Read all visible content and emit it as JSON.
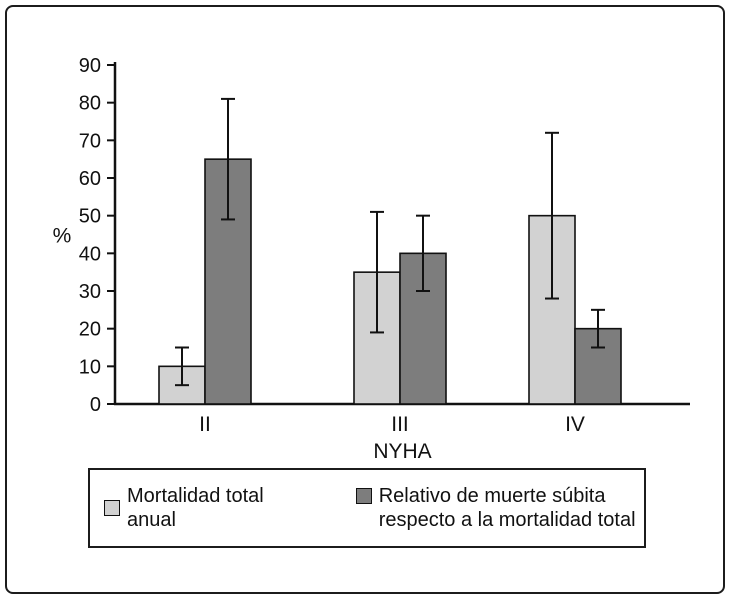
{
  "figure": {
    "type": "scientific-bar-chart"
  },
  "chart_data": {
    "type": "bar",
    "title": "",
    "categories": [
      "II",
      "III",
      "IV"
    ],
    "series": [
      {
        "name": "Mortalidad total anual",
        "color": "#d2d2d2",
        "values": [
          10,
          35,
          50
        ],
        "errors": [
          5,
          16,
          22
        ]
      },
      {
        "name": "Relativo de muerte súbita respecto a la mortalidad total",
        "color": "#7d7d7d",
        "values": [
          65,
          40,
          20
        ],
        "errors": [
          16,
          10,
          5
        ]
      }
    ],
    "xlabel": "NYHA",
    "ylabel": "%",
    "ylim": [
      0,
      90
    ],
    "ytick_step": 10,
    "grid": false,
    "legend_position": "bottom",
    "error_bars": true
  }
}
